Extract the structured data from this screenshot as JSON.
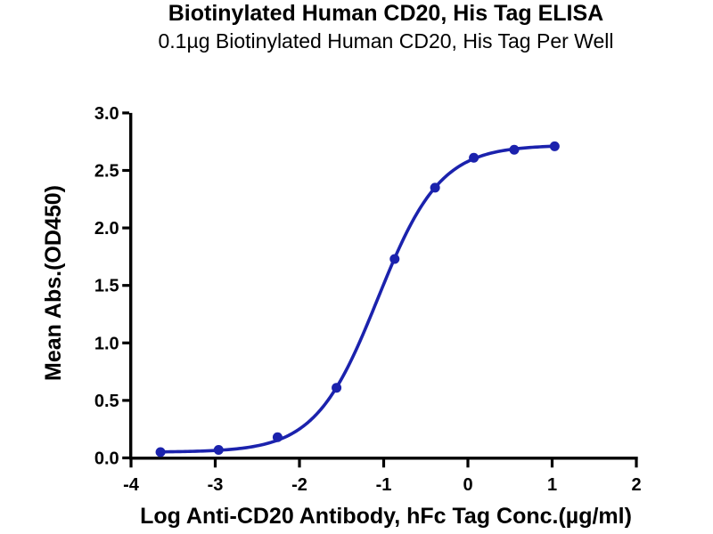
{
  "header": {
    "title": "Biotinylated Human CD20, His Tag ELISA",
    "subtitle": "0.1µg Biotinylated Human CD20, His Tag Per Well"
  },
  "chart_data": {
    "type": "scatter",
    "title": "Biotinylated Human CD20, His Tag ELISA",
    "subtitle": "0.1µg Biotinylated Human CD20, His Tag Per Well",
    "xlabel": "Log Anti-CD20 Antibody, hFc Tag Conc.(µg/ml)",
    "ylabel": "Mean Abs.(OD450)",
    "xlim": [
      -4,
      2
    ],
    "ylim": [
      0.0,
      3.0
    ],
    "xticks": [
      -4,
      -3,
      -2,
      -1,
      0,
      1,
      2
    ],
    "ytick_labels": [
      "0.0",
      "0.5",
      "1.0",
      "1.5",
      "2.0",
      "2.5",
      "3.0"
    ],
    "ytick_values": [
      0.0,
      0.5,
      1.0,
      1.5,
      2.0,
      2.5,
      3.0
    ],
    "grid": false,
    "legend": "none",
    "axis_color": "#000000",
    "series": [
      {
        "name": "Anti-CD20 Antibody, hFc Tag",
        "color": "#1b22ad",
        "marker": "circle",
        "points": [
          [
            -3.65,
            0.05
          ],
          [
            -2.96,
            0.07
          ],
          [
            -2.26,
            0.18
          ],
          [
            -1.56,
            0.61
          ],
          [
            -0.87,
            1.73
          ],
          [
            -0.39,
            2.35
          ],
          [
            0.07,
            2.61
          ],
          [
            0.55,
            2.68
          ],
          [
            1.03,
            2.71
          ]
        ],
        "fit_4pl": {
          "bottom": 0.05,
          "top": 2.72,
          "hill": 1.17,
          "log_ec50": -1.07
        }
      }
    ]
  }
}
